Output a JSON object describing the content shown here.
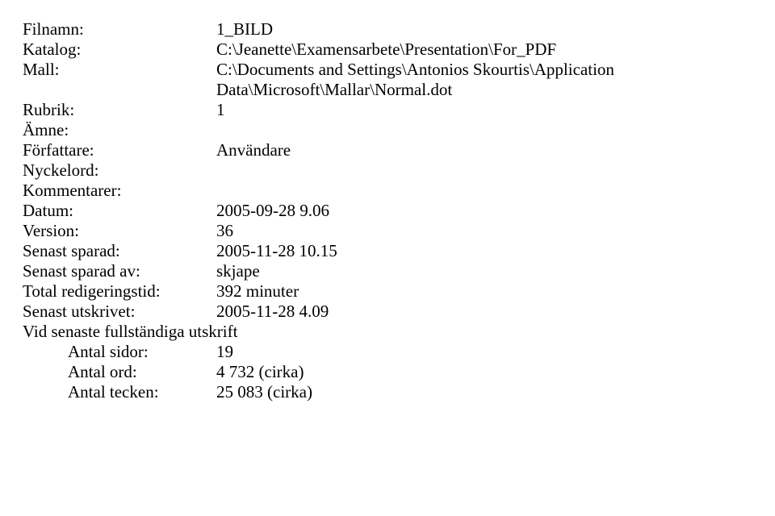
{
  "rows": [
    {
      "label": "Filnamn:",
      "value": "1_BILD"
    },
    {
      "label": "Katalog:",
      "value": "C:\\Jeanette\\Examensarbete\\Presentation\\For_PDF"
    },
    {
      "label": "Mall:",
      "value": "C:\\Documents and Settings\\Antonios Skourtis\\Application Data\\Microsoft\\Mallar\\Normal.dot"
    },
    {
      "label": "Rubrik:",
      "value": "1"
    },
    {
      "label": "Ämne:",
      "value": ""
    },
    {
      "label": "Författare:",
      "value": "Användare"
    },
    {
      "label": "Nyckelord:",
      "value": ""
    },
    {
      "label": "Kommentarer:",
      "value": ""
    },
    {
      "label": "Datum:",
      "value": "2005-09-28 9.06"
    },
    {
      "label": "Version:",
      "value": "36"
    },
    {
      "label": "Senast sparad:",
      "value": "2005-11-28 10.15"
    },
    {
      "label": "Senast sparad av:",
      "value": "skjape"
    },
    {
      "label": "Total redigeringstid:",
      "value": "392 minuter"
    },
    {
      "label": "Senast utskrivet:",
      "value": "2005-11-28 4.09"
    }
  ],
  "section_heading": "Vid senaste fullständiga utskrift",
  "indented_rows": [
    {
      "label": "Antal sidor:",
      "value": "19"
    },
    {
      "label": "Antal ord:",
      "value": "4 732 (cirka)"
    },
    {
      "label": "Antal tecken:",
      "value": "25 083 (cirka)"
    }
  ]
}
